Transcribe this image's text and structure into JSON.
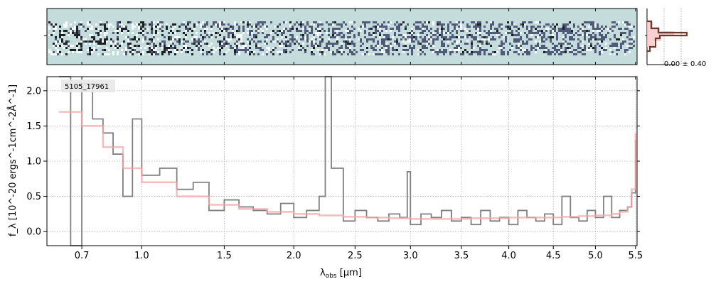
{
  "chart_data": {
    "type": "line",
    "object_id": "5105_17961",
    "xlabel_main": "λ",
    "xlabel_sub": "obs",
    "xlabel_unit": " [μm]",
    "ylabel": "f_λ [10^-20 ergs^-1cm^-2Å^-1]",
    "x_tick_labels": [
      "0.7",
      "1.0",
      "1.5",
      "2.0",
      "2.5",
      "3.0",
      "3.5",
      "4.0",
      "4.5",
      "5.0",
      "5.5"
    ],
    "x_tick_values": [
      0.7,
      1.0,
      1.5,
      2.0,
      2.5,
      3.0,
      3.5,
      4.0,
      4.5,
      5.0,
      5.5
    ],
    "y_tick_labels": [
      "0.0",
      "0.5",
      "1.0",
      "1.5",
      "2.0"
    ],
    "y_tick_values": [
      0.0,
      0.5,
      1.0,
      1.5,
      2.0
    ],
    "ylim": [
      -0.2,
      2.2
    ],
    "xlim": [
      0.55,
      5.52
    ],
    "hist_label": "0.00 ± 0.40",
    "colors": {
      "spectrum": "#808080",
      "model": "#f4a6a6",
      "histogram": "#6b3a2a",
      "histogram_fill": "#f9c4c4",
      "image_background": "#c5dcdc",
      "grid": "#b0b0b0"
    },
    "series": [
      {
        "name": "",
        "color": "#808080",
        "x": [
          0.6,
          0.65,
          0.7,
          0.75,
          0.8,
          0.85,
          0.9,
          0.95,
          1.0,
          1.1,
          1.2,
          1.3,
          1.4,
          1.5,
          1.6,
          1.7,
          1.8,
          1.9,
          2.0,
          2.1,
          2.2,
          2.25,
          2.3,
          2.4,
          2.5,
          2.6,
          2.7,
          2.8,
          2.9,
          2.97,
          3.0,
          3.1,
          3.2,
          3.3,
          3.4,
          3.5,
          3.6,
          3.7,
          3.8,
          3.9,
          4.0,
          4.1,
          4.2,
          4.3,
          4.4,
          4.5,
          4.6,
          4.7,
          4.8,
          4.9,
          5.0,
          5.1,
          5.2,
          5.3,
          5.4,
          5.45,
          5.5
        ],
        "y": [
          2.2,
          -0.2,
          2.1,
          1.6,
          1.4,
          1.1,
          0.5,
          1.6,
          0.8,
          0.9,
          0.6,
          0.7,
          0.3,
          0.45,
          0.35,
          0.3,
          0.25,
          0.4,
          0.2,
          0.3,
          0.5,
          2.2,
          0.9,
          0.15,
          0.3,
          0.2,
          0.15,
          0.25,
          0.2,
          0.85,
          0.1,
          0.25,
          0.2,
          0.3,
          0.15,
          0.2,
          0.1,
          0.3,
          0.15,
          0.2,
          0.1,
          0.3,
          0.2,
          0.15,
          0.25,
          0.1,
          0.5,
          0.2,
          0.15,
          0.3,
          0.2,
          0.5,
          0.2,
          0.3,
          0.35,
          0.55,
          1.3
        ]
      },
      {
        "name": "",
        "color": "#f4a6a6",
        "x": [
          0.6,
          0.7,
          0.8,
          0.9,
          1.0,
          1.2,
          1.4,
          1.6,
          1.8,
          2.0,
          2.2,
          2.4,
          2.6,
          2.8,
          3.0,
          3.2,
          3.4,
          3.6,
          3.8,
          4.0,
          4.2,
          4.4,
          4.6,
          4.8,
          5.0,
          5.2,
          5.3,
          5.4,
          5.45,
          5.5
        ],
        "y": [
          1.7,
          1.5,
          1.2,
          0.9,
          0.7,
          0.5,
          0.38,
          0.32,
          0.28,
          0.25,
          0.23,
          0.21,
          0.2,
          0.19,
          0.18,
          0.18,
          0.18,
          0.19,
          0.19,
          0.2,
          0.2,
          0.2,
          0.21,
          0.22,
          0.23,
          0.25,
          0.28,
          0.35,
          0.6,
          1.4
        ]
      }
    ]
  }
}
